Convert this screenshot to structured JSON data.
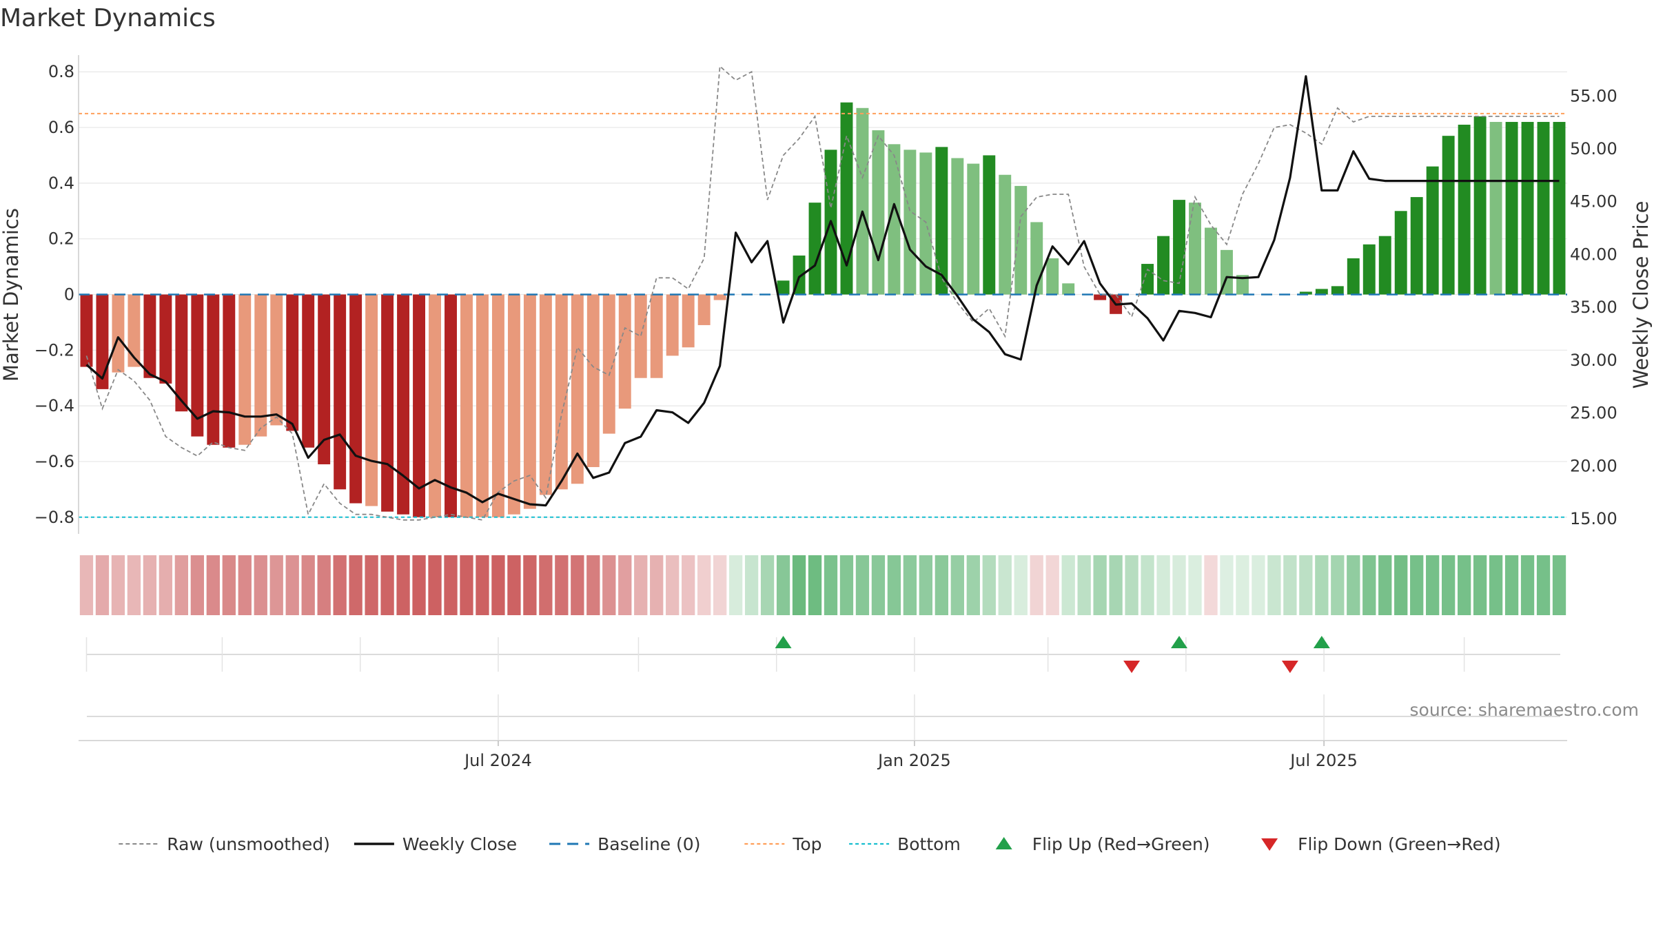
{
  "chart_data": {
    "type": "bar",
    "title": "Market Dynamics",
    "ylabel_left": "Market Dynamics",
    "ylabel_right": "Weekly Close Price",
    "ylim_left": [
      -0.86,
      0.86
    ],
    "yticks_left": [
      -0.8,
      -0.6,
      -0.4,
      -0.2,
      0,
      0.2,
      0.4,
      0.6,
      0.8
    ],
    "ytick_labels_left": [
      "−0.8",
      "−0.6",
      "−0.4",
      "−0.2",
      "0",
      "0.2",
      "0.4",
      "0.6",
      "0.8"
    ],
    "ylim_right": [
      13.5,
      58.8
    ],
    "yticks_right": [
      15,
      20,
      25,
      30,
      35,
      40,
      45,
      50,
      55
    ],
    "ytick_labels_right": [
      "15.00",
      "20.00",
      "25.00",
      "30.00",
      "35.00",
      "40.00",
      "45.00",
      "50.00",
      "55.00"
    ],
    "x_dates": [
      "2024-01-01",
      "2024-01-08",
      "2024-01-15",
      "2024-01-22",
      "2024-01-29",
      "2024-02-05",
      "2024-02-12",
      "2024-02-19",
      "2024-02-26",
      "2024-03-04",
      "2024-03-11",
      "2024-03-18",
      "2024-03-25",
      "2024-04-01",
      "2024-04-08",
      "2024-04-15",
      "2024-04-22",
      "2024-04-29",
      "2024-05-06",
      "2024-05-13",
      "2024-05-20",
      "2024-05-27",
      "2024-06-03",
      "2024-06-10",
      "2024-06-17",
      "2024-06-24",
      "2024-07-01",
      "2024-07-08",
      "2024-07-15",
      "2024-07-22",
      "2024-07-29",
      "2024-08-05",
      "2024-08-12",
      "2024-08-19",
      "2024-08-26",
      "2024-09-02",
      "2024-09-09",
      "2024-09-16",
      "2024-09-23",
      "2024-09-30",
      "2024-10-07",
      "2024-10-14",
      "2024-10-21",
      "2024-10-28",
      "2024-11-04",
      "2024-11-11",
      "2024-11-18",
      "2024-11-25",
      "2024-12-02",
      "2024-12-09",
      "2024-12-16",
      "2024-12-23",
      "2024-12-30",
      "2025-01-06",
      "2025-01-13",
      "2025-01-20",
      "2025-01-27",
      "2025-02-03",
      "2025-02-10",
      "2025-02-17",
      "2025-02-24",
      "2025-03-03",
      "2025-03-10",
      "2025-03-17",
      "2025-03-24",
      "2025-03-31",
      "2025-04-07",
      "2025-04-14",
      "2025-04-21",
      "2025-04-28",
      "2025-05-05",
      "2025-05-12",
      "2025-05-19",
      "2025-05-26",
      "2025-06-02",
      "2025-06-09",
      "2025-06-16",
      "2025-06-23",
      "2025-06-30",
      "2025-07-07",
      "2025-07-14",
      "2025-07-21",
      "2025-07-28",
      "2025-08-04",
      "2025-08-11",
      "2025-08-18",
      "2025-08-25",
      "2025-09-01",
      "2025-09-08",
      "2025-09-15",
      "2025-09-22",
      "2025-09-29",
      "2025-10-06",
      "2025-10-13"
    ],
    "x_tick_labels": [
      {
        "date": "2024-07-01",
        "label": "Jul 2024"
      },
      {
        "date": "2025-01-01",
        "label": "Jan 2025"
      },
      {
        "date": "2025-07-01",
        "label": "Jul 2025"
      }
    ],
    "x_minor_grid_dates": [
      "2024-01-01",
      "2024-03-01",
      "2024-05-01",
      "2024-07-01",
      "2024-09-01",
      "2024-11-01",
      "2025-01-01",
      "2025-03-01",
      "2025-05-01",
      "2025-07-01",
      "2025-09-01"
    ],
    "bars": [
      -0.26,
      -0.34,
      -0.28,
      -0.26,
      -0.3,
      -0.32,
      -0.42,
      -0.51,
      -0.54,
      -0.55,
      -0.54,
      -0.51,
      -0.47,
      -0.49,
      -0.55,
      -0.61,
      -0.7,
      -0.75,
      -0.76,
      -0.78,
      -0.79,
      -0.8,
      -0.8,
      -0.8,
      -0.8,
      -0.8,
      -0.8,
      -0.79,
      -0.77,
      -0.72,
      -0.7,
      -0.68,
      -0.62,
      -0.5,
      -0.41,
      -0.3,
      -0.3,
      -0.22,
      -0.19,
      -0.11,
      -0.02,
      0.0,
      0.0,
      0.0,
      0.05,
      0.14,
      0.33,
      0.52,
      0.69,
      0.67,
      0.59,
      0.54,
      0.52,
      0.51,
      0.53,
      0.49,
      0.47,
      0.5,
      0.43,
      0.39,
      0.26,
      0.13,
      0.04,
      0.0,
      -0.02,
      -0.07,
      0.0,
      0.11,
      0.21,
      0.34,
      0.33,
      0.24,
      0.16,
      0.07,
      0.0,
      0.0,
      0.0,
      0.01,
      0.02,
      0.03,
      0.13,
      0.18,
      0.21,
      0.3,
      0.35,
      0.46,
      0.57,
      0.61,
      0.64,
      0.62,
      0.62,
      0.62,
      0.62,
      0.62
    ],
    "bar_shade": [
      "dark",
      "dark",
      "light",
      "light",
      "dark",
      "dark",
      "dark",
      "dark",
      "dark",
      "dark",
      "light",
      "light",
      "light",
      "dark",
      "dark",
      "dark",
      "dark",
      "dark",
      "light",
      "dark",
      "dark",
      "dark",
      "light",
      "dark",
      "light",
      "light",
      "light",
      "light",
      "light",
      "light",
      "light",
      "light",
      "light",
      "light",
      "light",
      "light",
      "light",
      "light",
      "light",
      "light",
      "light",
      "light",
      "light",
      "light",
      "dark",
      "dark",
      "dark",
      "dark",
      "dark",
      "light",
      "light",
      "light",
      "light",
      "light",
      "dark",
      "light",
      "light",
      "dark",
      "light",
      "light",
      "light",
      "light",
      "light",
      "light",
      "dark",
      "dark",
      "light",
      "dark",
      "dark",
      "dark",
      "light",
      "light",
      "light",
      "light",
      "light",
      "light",
      "light",
      "dark",
      "dark",
      "dark",
      "dark",
      "dark",
      "dark",
      "dark",
      "dark",
      "dark",
      "dark",
      "dark",
      "dark",
      "light",
      "dark",
      "dark",
      "dark",
      "dark"
    ],
    "weekly_close": [
      29.5,
      28.2,
      32.1,
      30.2,
      28.6,
      27.9,
      26.1,
      24.4,
      25.1,
      25.0,
      24.6,
      24.6,
      24.8,
      23.9,
      20.7,
      22.4,
      22.9,
      20.9,
      20.4,
      20.1,
      19.0,
      17.8,
      18.6,
      17.9,
      17.4,
      16.5,
      17.3,
      16.8,
      16.3,
      16.2,
      18.5,
      21.1,
      18.8,
      19.3,
      22.1,
      22.7,
      25.2,
      25.0,
      24.0,
      25.9,
      29.4,
      42.0,
      39.2,
      41.2,
      33.5,
      37.8,
      38.9,
      43.1,
      38.9,
      44.0,
      39.4,
      44.7,
      40.4,
      38.8,
      38.0,
      36.0,
      33.8,
      32.6,
      30.5,
      30.0,
      37.0,
      40.7,
      39.0,
      41.2,
      37.2,
      35.2,
      35.3,
      33.9,
      31.8,
      34.6,
      34.4,
      34.0,
      37.8,
      37.7,
      37.8,
      41.3,
      47.2,
      56.8,
      46.0,
      46.0,
      49.7,
      47.1,
      46.9,
      46.9,
      46.9,
      46.9,
      46.9,
      46.9,
      46.9,
      46.9,
      46.9,
      46.9,
      46.9,
      46.9
    ],
    "raw_unsmoothed": [
      -0.22,
      -0.41,
      -0.27,
      -0.31,
      -0.38,
      -0.51,
      -0.55,
      -0.58,
      -0.53,
      -0.55,
      -0.56,
      -0.48,
      -0.44,
      -0.5,
      -0.79,
      -0.68,
      -0.75,
      -0.79,
      -0.79,
      -0.8,
      -0.81,
      -0.81,
      -0.8,
      -0.79,
      -0.8,
      -0.81,
      -0.71,
      -0.67,
      -0.65,
      -0.73,
      -0.43,
      -0.19,
      -0.26,
      -0.29,
      -0.12,
      -0.15,
      0.06,
      0.06,
      0.02,
      0.13,
      0.82,
      0.77,
      0.8,
      0.34,
      0.5,
      0.56,
      0.64,
      0.31,
      0.57,
      0.42,
      0.57,
      0.5,
      0.3,
      0.26,
      0.06,
      -0.03,
      -0.1,
      -0.05,
      -0.15,
      0.28,
      0.35,
      0.36,
      0.36,
      0.1,
      0.0,
      0.0,
      -0.08,
      0.09,
      0.05,
      0.04,
      0.35,
      0.25,
      0.18,
      0.36,
      0.47,
      0.6,
      0.61,
      0.58,
      0.54,
      0.67,
      0.62,
      0.64,
      0.64,
      0.64,
      0.64,
      0.64,
      0.64,
      0.64,
      0.64,
      0.64,
      0.64,
      0.64,
      0.64,
      0.64
    ],
    "heat_strip": [
      -0.26,
      -0.34,
      -0.28,
      -0.26,
      -0.3,
      -0.32,
      -0.42,
      -0.51,
      -0.54,
      -0.55,
      -0.54,
      -0.51,
      -0.47,
      -0.49,
      -0.55,
      -0.61,
      -0.7,
      -0.75,
      -0.76,
      -0.78,
      -0.79,
      -0.8,
      -0.8,
      -0.8,
      -0.8,
      -0.8,
      -0.8,
      -0.79,
      -0.77,
      -0.72,
      -0.7,
      -0.68,
      -0.62,
      -0.5,
      -0.41,
      -0.3,
      -0.3,
      -0.22,
      -0.19,
      -0.11,
      -0.08,
      0.05,
      0.14,
      0.33,
      0.52,
      0.69,
      0.67,
      0.59,
      0.54,
      0.52,
      0.51,
      0.53,
      0.49,
      0.47,
      0.5,
      0.43,
      0.39,
      0.26,
      0.13,
      0.04,
      -0.08,
      -0.07,
      0.11,
      0.21,
      0.34,
      0.33,
      0.24,
      0.16,
      0.07,
      0.05,
      0.03,
      -0.05,
      0.01,
      0.02,
      0.03,
      0.13,
      0.18,
      0.21,
      0.3,
      0.35,
      0.46,
      0.57,
      0.61,
      0.64,
      0.62,
      0.62,
      0.62,
      0.62,
      0.62,
      0.62,
      0.62,
      0.62,
      0.62,
      0.62
    ],
    "baseline": 0,
    "top": 0.65,
    "bottom": -0.8,
    "flip_up_dates": [
      "2024-11-04",
      "2025-04-28",
      "2025-06-30"
    ],
    "flip_down_dates": [
      "2025-04-07",
      "2025-06-16"
    ],
    "legend_position": "bottom-center",
    "grid": true,
    "legend": [
      {
        "key": "raw",
        "label": "Raw (unsmoothed)",
        "style": "dashed-gray"
      },
      {
        "key": "close",
        "label": "Weekly Close",
        "style": "solid-black"
      },
      {
        "key": "baseline",
        "label": "Baseline (0)",
        "style": "dashed-blue"
      },
      {
        "key": "top",
        "label": "Top",
        "style": "dotted-orange"
      },
      {
        "key": "bottom",
        "label": "Bottom",
        "style": "dotted-cyan"
      },
      {
        "key": "flipup",
        "label": "Flip Up (Red→Green)",
        "style": "triangle-up-green"
      },
      {
        "key": "flipdown",
        "label": "Flip Down (Green→Red)",
        "style": "triangle-down-red"
      }
    ],
    "source_note": "source: sharemaestro.com",
    "colors": {
      "red_dark": "#b22222",
      "red_light": "#e8997b",
      "green_dark": "#228b22",
      "green_light": "#7fbf7f",
      "close_line": "#111111",
      "raw_line": "#888888",
      "baseline": "#1f77b4",
      "top": "#ff9f5a",
      "bottom": "#17becf",
      "flip_up": "#22a04a",
      "flip_down": "#d62728",
      "grid": "#e6e6e6"
    }
  }
}
